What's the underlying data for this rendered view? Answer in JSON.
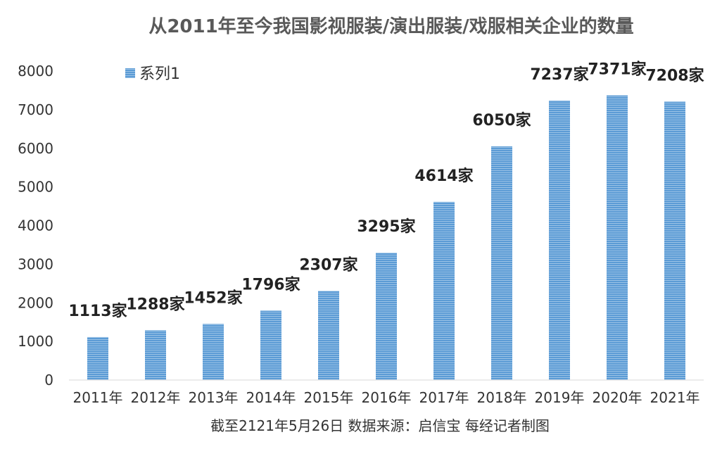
{
  "chart_data": {
    "type": "bar",
    "title": "从2011年至今我国影视服装/演出服装/戏服相关企业的数量",
    "categories": [
      "2011年",
      "2012年",
      "2013年",
      "2014年",
      "2015年",
      "2016年",
      "2017年",
      "2018年",
      "2019年",
      "2020年",
      "2021年"
    ],
    "series": [
      {
        "name": "系列1",
        "values": [
          1113,
          1288,
          1452,
          1796,
          2307,
          3295,
          4614,
          6050,
          7237,
          7371,
          7208
        ],
        "labels": [
          "1113家",
          "1288家",
          "1452家",
          "1796家",
          "2307家",
          "3295家",
          "4614家",
          "6050家",
          "7237家",
          "7371家",
          "7208家"
        ],
        "color": "#5b9bd5"
      }
    ],
    "ylim": [
      0,
      8000
    ],
    "yticks": [
      "0",
      "1000",
      "2000",
      "3000",
      "4000",
      "5000",
      "6000",
      "7000",
      "8000"
    ],
    "xlabel": "",
    "ylabel": "",
    "grid": false,
    "legend": "top-left",
    "footer": "截至2121年5月26日    数据来源：启信宝    每经记者制图"
  }
}
